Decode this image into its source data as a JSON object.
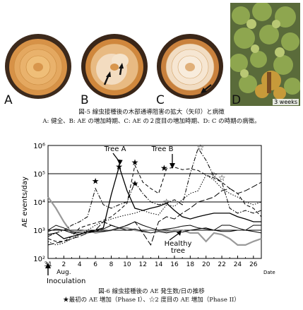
{
  "figure5": {
    "panels": [
      {
        "letter": "A",
        "description_icon": "healthy-trunk-cross-section"
      },
      {
        "letter": "B",
        "description_icon": "ae-increase-cross-section"
      },
      {
        "letter": "C",
        "description_icon": "second-ae-increase-cross-section"
      },
      {
        "letter": "D",
        "description_icon": "diseased-pine-crown"
      }
    ],
    "photo_d_label": "3 weeks",
    "caption_line1": "図-5  線虫接種後の木部通導阻害の拡大（矢印）と病徴",
    "caption_line2": "A: 健全、B: AE の増加時期、C: AE の２度目の増加時期、D: C の時期の病徴。"
  },
  "figure6": {
    "caption_line1": "図-6  線虫接種後の AE 発生数/日の推移",
    "caption_line2": "★最初の AE 増加（Phase I）、☆2 度目の AE 増加（Phase II）"
  },
  "chart_data": {
    "type": "line",
    "ylabel": "AE events/day",
    "xlabel": "Date",
    "yscale": "log",
    "ylim": [
      100,
      1000000
    ],
    "xlim": [
      31,
      27
    ],
    "y_tick_labels": [
      "10²",
      "10³",
      "10⁴",
      "10⁵",
      "10⁶"
    ],
    "x_tick_labels": [
      "31",
      "2",
      "4",
      "6",
      "8",
      "10",
      "12",
      "14",
      "16",
      "18",
      "20",
      "22",
      "24",
      "26"
    ],
    "x_month_label": "Aug.",
    "annotations": {
      "tree_a": "Tree A",
      "tree_b": "Tree B",
      "healthy": "Healthy tree",
      "inoculation": "Inoculation"
    },
    "series": [
      {
        "style": "gray",
        "x": [
          31,
          1,
          2,
          3,
          4,
          5,
          6,
          7,
          8,
          9,
          10,
          11,
          12,
          13,
          14,
          15,
          16,
          17,
          18,
          19,
          20,
          21,
          22,
          23,
          24,
          25,
          26,
          27
        ],
        "y": [
          15000,
          6000,
          2000,
          800,
          900,
          1000,
          800,
          900,
          1000,
          1200,
          1200,
          1000,
          900,
          1000,
          1000,
          900,
          1000,
          1000,
          800,
          800,
          400,
          800,
          700,
          500,
          300,
          300,
          400,
          500
        ]
      },
      {
        "style": "solid",
        "x": [
          31,
          1,
          2,
          3,
          4,
          5,
          6,
          7,
          8,
          9,
          10,
          11,
          12,
          13,
          14,
          15,
          16,
          17,
          18,
          19,
          20,
          21,
          22,
          23,
          24,
          25,
          26,
          27
        ],
        "y": [
          700,
          800,
          500,
          600,
          700,
          900,
          1000,
          1200,
          18000,
          180000,
          25000,
          6000,
          5000,
          6000,
          7000,
          9000,
          5000,
          3000,
          2500,
          3000,
          3500,
          4000,
          4000,
          4000,
          3000,
          2500,
          2000,
          2000
        ]
      },
      {
        "style": "solid-2",
        "x": [
          31,
          1,
          2,
          3,
          4,
          5,
          6,
          7,
          8,
          9,
          10,
          11,
          12,
          13,
          14,
          15,
          16,
          17,
          18,
          19,
          20,
          21,
          22,
          23,
          24,
          25,
          26,
          27
        ],
        "y": [
          1000,
          1500,
          1200,
          900,
          800,
          800,
          900,
          900,
          1000,
          1200,
          1500,
          2000,
          1500,
          1200,
          1000,
          1100,
          1200,
          1400,
          1500,
          1200,
          1100,
          1000,
          1500,
          1500,
          1200,
          1000,
          1500,
          1500
        ]
      },
      {
        "style": "solid-3",
        "x": [
          31,
          1,
          2,
          3,
          4,
          5,
          6,
          7,
          8,
          9,
          10,
          11,
          12,
          13,
          14,
          15,
          16,
          17,
          18,
          19,
          20,
          21,
          22,
          23,
          24,
          25,
          26,
          27
        ],
        "y": [
          900,
          1100,
          1000,
          800,
          700,
          900,
          900,
          1100,
          1500,
          1200,
          1000,
          1100,
          900,
          800,
          900,
          800,
          900,
          850,
          1000,
          1100,
          1200,
          1000,
          900,
          900,
          1000,
          1000,
          900,
          800
        ]
      },
      {
        "style": "dash",
        "x": [
          31,
          1,
          2,
          3,
          4,
          5,
          6,
          7,
          8,
          9,
          10,
          11,
          12,
          13,
          14,
          15,
          16,
          17,
          18,
          19,
          20,
          21,
          22,
          23,
          24,
          25,
          26,
          27
        ],
        "y": [
          500,
          400,
          400,
          600,
          1200,
          1500,
          1800,
          2200,
          3000,
          5000,
          9000,
          200000,
          50000,
          30000,
          20000,
          150000,
          170000,
          140000,
          150000,
          130000,
          90000,
          70000,
          50000,
          30000,
          20000,
          8000,
          6000,
          3000
        ]
      },
      {
        "style": "dashdot",
        "x": [
          31,
          1,
          2,
          3,
          4,
          5,
          6,
          7,
          8,
          9,
          10,
          11,
          12,
          13,
          14,
          15,
          16,
          17,
          18,
          19,
          20,
          21,
          22,
          23,
          24,
          25,
          26,
          27
        ],
        "y": [
          600,
          800,
          1000,
          1500,
          2000,
          3000,
          30000,
          8000,
          6000,
          8000,
          10000,
          50000,
          20000,
          10000,
          8000,
          9000,
          12000,
          8000,
          100000,
          800000,
          300000,
          80000,
          50000,
          6000,
          4000,
          5000,
          4000,
          5000
        ]
      },
      {
        "style": "dot",
        "x": [
          31,
          1,
          2,
          3,
          4,
          5,
          6,
          7,
          8,
          9,
          10,
          11,
          12,
          13,
          14,
          15,
          16,
          17,
          18,
          19,
          20,
          21,
          22,
          23,
          24,
          25,
          26,
          27
        ],
        "y": [
          400,
          300,
          350,
          500,
          700,
          1000,
          1500,
          2000,
          2500,
          3000,
          3500,
          4000,
          5000,
          4000,
          3500,
          8000,
          7000,
          12000,
          20000,
          25000,
          90000,
          60000,
          30000,
          20000,
          15000,
          10000,
          8000,
          10000
        ]
      },
      {
        "style": "longdash",
        "x": [
          31,
          1,
          2,
          3,
          4,
          5,
          6,
          7,
          8,
          9,
          10,
          11,
          12,
          13,
          14,
          15,
          16,
          17,
          18,
          19,
          20,
          21,
          22,
          23,
          24,
          25,
          26,
          27
        ],
        "y": [
          300,
          350,
          400,
          500,
          600,
          800,
          1000,
          2000,
          1500,
          1200,
          1500,
          2000,
          800,
          300,
          2000,
          3000,
          2500,
          4000,
          6000,
          10000,
          12000,
          15000,
          25000,
          30000,
          20000,
          25000,
          35000,
          50000
        ]
      }
    ],
    "markers": [
      {
        "symbol": "★",
        "x": 6,
        "y": 55000
      },
      {
        "symbol": "★",
        "x": 9,
        "y": 180000
      },
      {
        "symbol": "★",
        "x": 11,
        "y": 250000
      },
      {
        "symbol": "★",
        "x": 11,
        "y": 45000
      },
      {
        "symbol": "★",
        "x": 14.7,
        "y": 160000
      },
      {
        "symbol": "☆",
        "x": 15,
        "y": 10000
      },
      {
        "symbol": "☆",
        "x": 19.3,
        "y": 850000
      },
      {
        "symbol": "☆",
        "x": 21,
        "y": 90000
      },
      {
        "symbol": "☆",
        "x": 22,
        "y": 70000
      }
    ]
  }
}
